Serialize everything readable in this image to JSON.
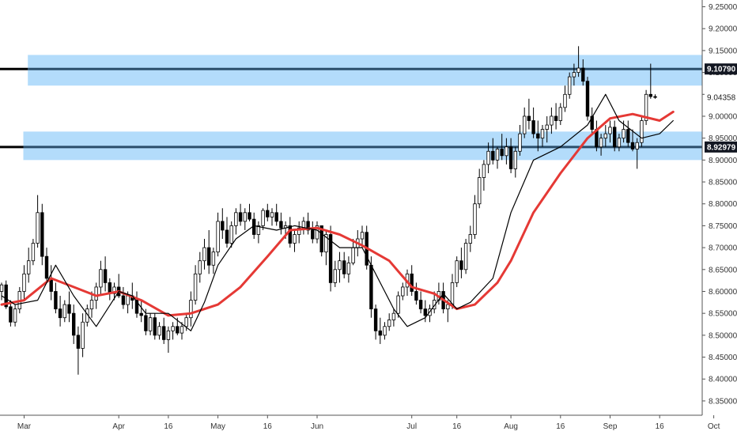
{
  "chart_data": {
    "type": "candlestick",
    "y_range": [
      8.33,
      9.26
    ],
    "x_range": [
      0,
      164
    ],
    "x_ticks": [
      {
        "label": "Mar",
        "x": 5
      },
      {
        "label": "Apr",
        "x": 26
      },
      {
        "label": "16",
        "x": 37
      },
      {
        "label": "May",
        "x": 48
      },
      {
        "label": "16",
        "x": 59
      },
      {
        "label": "Jun",
        "x": 70
      },
      {
        "label": "Jul",
        "x": 91
      },
      {
        "label": "16",
        "x": 101
      },
      {
        "label": "Aug",
        "x": 113
      },
      {
        "label": "16",
        "x": 124
      },
      {
        "label": "Sep",
        "x": 135
      },
      {
        "label": "16",
        "x": 146
      },
      {
        "label": "Oct",
        "x": 158
      }
    ],
    "y_ticks": [
      "8.35000",
      "8.40000",
      "8.45000",
      "8.50000",
      "8.55000",
      "8.60000",
      "8.65000",
      "8.70000",
      "8.75000",
      "8.80000",
      "8.85000",
      "8.90000",
      "8.95000",
      "9.00000",
      "9.05000",
      "9.10000",
      "9.15000",
      "9.20000",
      "9.25000"
    ],
    "price_labels": [
      {
        "text": "9.10790",
        "value": 9.1079,
        "style": "boxed"
      },
      {
        "text": "9.04358",
        "value": 9.04358,
        "style": "plain"
      },
      {
        "text": "8.92979",
        "value": 8.92979,
        "style": "boxed"
      }
    ],
    "zones": [
      {
        "low": 9.07,
        "high": 9.14,
        "x_start": 6,
        "line": 9.1079
      },
      {
        "low": 8.9,
        "high": 8.965,
        "x_start": 5,
        "line": 8.92979
      }
    ],
    "colors": {
      "zone_fill": "#b3dcfb",
      "zone_line": "#2b4e6b",
      "ma_slow": "#e53935",
      "ma_fast": "#000000",
      "candle_down": "#000000",
      "candle_up": "#ffffff",
      "candle_outline": "#000000"
    },
    "series": [
      {
        "type": "ma-slow",
        "points": [
          [
            0,
            8.57
          ],
          [
            5,
            8.58
          ],
          [
            11,
            8.63
          ],
          [
            16,
            8.61
          ],
          [
            21,
            8.59
          ],
          [
            26,
            8.6
          ],
          [
            31,
            8.58
          ],
          [
            37,
            8.545
          ],
          [
            42,
            8.55
          ],
          [
            48,
            8.57
          ],
          [
            53,
            8.61
          ],
          [
            59,
            8.68
          ],
          [
            64,
            8.74
          ],
          [
            70,
            8.745
          ],
          [
            75,
            8.73
          ],
          [
            80,
            8.705
          ],
          [
            86,
            8.67
          ],
          [
            91,
            8.61
          ],
          [
            96,
            8.595
          ],
          [
            101,
            8.56
          ],
          [
            105,
            8.57
          ],
          [
            110,
            8.62
          ],
          [
            113,
            8.67
          ],
          [
            118,
            8.78
          ],
          [
            124,
            8.87
          ],
          [
            130,
            8.95
          ],
          [
            135,
            8.995
          ],
          [
            140,
            9.005
          ],
          [
            146,
            8.99
          ],
          [
            149,
            9.01
          ]
        ]
      },
      {
        "type": "ma-fast",
        "points": [
          [
            0,
            8.59
          ],
          [
            3,
            8.57
          ],
          [
            8,
            8.58
          ],
          [
            12,
            8.66
          ],
          [
            16,
            8.59
          ],
          [
            21,
            8.52
          ],
          [
            26,
            8.6
          ],
          [
            29,
            8.59
          ],
          [
            32,
            8.55
          ],
          [
            37,
            8.55
          ],
          [
            42,
            8.51
          ],
          [
            45,
            8.575
          ],
          [
            48,
            8.66
          ],
          [
            52,
            8.72
          ],
          [
            56,
            8.75
          ],
          [
            61,
            8.74
          ],
          [
            65,
            8.75
          ],
          [
            70,
            8.74
          ],
          [
            75,
            8.7
          ],
          [
            80,
            8.7
          ],
          [
            84,
            8.62
          ],
          [
            87,
            8.56
          ],
          [
            90,
            8.52
          ],
          [
            94,
            8.54
          ],
          [
            98,
            8.595
          ],
          [
            101,
            8.56
          ],
          [
            104,
            8.575
          ],
          [
            109,
            8.63
          ],
          [
            113,
            8.78
          ],
          [
            118,
            8.9
          ],
          [
            124,
            8.93
          ],
          [
            130,
            8.98
          ],
          [
            134,
            9.05
          ],
          [
            137,
            8.99
          ],
          [
            142,
            8.95
          ],
          [
            146,
            8.96
          ],
          [
            149,
            8.99
          ]
        ]
      }
    ],
    "candles": [
      [
        0,
        8.6,
        8.62,
        8.58,
        8.615
      ],
      [
        1,
        8.615,
        8.625,
        8.56,
        8.565
      ],
      [
        2,
        8.565,
        8.58,
        8.52,
        8.53
      ],
      [
        3,
        8.53,
        8.57,
        8.52,
        8.56
      ],
      [
        4,
        8.56,
        8.61,
        8.55,
        8.6
      ],
      [
        5,
        8.6,
        8.66,
        8.58,
        8.64
      ],
      [
        6,
        8.64,
        8.7,
        8.62,
        8.67
      ],
      [
        7,
        8.67,
        8.72,
        8.66,
        8.71
      ],
      [
        8,
        8.71,
        8.82,
        8.7,
        8.78
      ],
      [
        9,
        8.78,
        8.8,
        8.66,
        8.68
      ],
      [
        10,
        8.68,
        8.7,
        8.62,
        8.63
      ],
      [
        11,
        8.63,
        8.66,
        8.58,
        8.6
      ],
      [
        12,
        8.6,
        8.62,
        8.55,
        8.56
      ],
      [
        13,
        8.56,
        8.59,
        8.52,
        8.54
      ],
      [
        14,
        8.54,
        8.58,
        8.53,
        8.57
      ],
      [
        15,
        8.57,
        8.6,
        8.53,
        8.55
      ],
      [
        16,
        8.55,
        8.57,
        8.48,
        8.5
      ],
      [
        17,
        8.5,
        8.52,
        8.41,
        8.47
      ],
      [
        18,
        8.47,
        8.55,
        8.45,
        8.53
      ],
      [
        19,
        8.53,
        8.57,
        8.52,
        8.56
      ],
      [
        20,
        8.56,
        8.6,
        8.54,
        8.58
      ],
      [
        21,
        8.58,
        8.62,
        8.56,
        8.61
      ],
      [
        22,
        8.61,
        8.67,
        8.59,
        8.65
      ],
      [
        23,
        8.65,
        8.68,
        8.6,
        8.62
      ],
      [
        24,
        8.62,
        8.63,
        8.58,
        8.595
      ],
      [
        25,
        8.595,
        8.62,
        8.58,
        8.61
      ],
      [
        26,
        8.61,
        8.64,
        8.585,
        8.59
      ],
      [
        27,
        8.59,
        8.61,
        8.56,
        8.57
      ],
      [
        28,
        8.57,
        8.6,
        8.55,
        8.59
      ],
      [
        29,
        8.59,
        8.62,
        8.56,
        8.58
      ],
      [
        30,
        8.58,
        8.6,
        8.54,
        8.55
      ],
      [
        31,
        8.55,
        8.58,
        8.53,
        8.545
      ],
      [
        32,
        8.545,
        8.56,
        8.5,
        8.51
      ],
      [
        33,
        8.51,
        8.55,
        8.5,
        8.54
      ],
      [
        34,
        8.54,
        8.55,
        8.49,
        8.5
      ],
      [
        35,
        8.5,
        8.53,
        8.49,
        8.52
      ],
      [
        36,
        8.52,
        8.54,
        8.48,
        8.49
      ],
      [
        37,
        8.49,
        8.52,
        8.46,
        8.51
      ],
      [
        38,
        8.51,
        8.53,
        8.49,
        8.52
      ],
      [
        39,
        8.52,
        8.54,
        8.5,
        8.505
      ],
      [
        40,
        8.505,
        8.53,
        8.49,
        8.52
      ],
      [
        41,
        8.52,
        8.55,
        8.51,
        8.54
      ],
      [
        42,
        8.54,
        8.6,
        8.52,
        8.58
      ],
      [
        43,
        8.58,
        8.66,
        8.57,
        8.64
      ],
      [
        44,
        8.64,
        8.69,
        8.62,
        8.67
      ],
      [
        45,
        8.67,
        8.72,
        8.65,
        8.7
      ],
      [
        46,
        8.7,
        8.74,
        8.64,
        8.66
      ],
      [
        47,
        8.66,
        8.7,
        8.64,
        8.69
      ],
      [
        48,
        8.69,
        8.78,
        8.68,
        8.76
      ],
      [
        49,
        8.76,
        8.79,
        8.72,
        8.74
      ],
      [
        50,
        8.74,
        8.77,
        8.7,
        8.71
      ],
      [
        51,
        8.71,
        8.76,
        8.7,
        8.75
      ],
      [
        52,
        8.75,
        8.79,
        8.73,
        8.78
      ],
      [
        53,
        8.78,
        8.8,
        8.75,
        8.76
      ],
      [
        54,
        8.76,
        8.79,
        8.74,
        8.78
      ],
      [
        55,
        8.78,
        8.8,
        8.76,
        8.765
      ],
      [
        56,
        8.765,
        8.78,
        8.72,
        8.73
      ],
      [
        57,
        8.73,
        8.76,
        8.71,
        8.75
      ],
      [
        58,
        8.75,
        8.79,
        8.74,
        8.785
      ],
      [
        59,
        8.785,
        8.8,
        8.76,
        8.77
      ],
      [
        60,
        8.77,
        8.79,
        8.75,
        8.78
      ],
      [
        61,
        8.78,
        8.8,
        8.75,
        8.76
      ],
      [
        62,
        8.76,
        8.78,
        8.73,
        8.745
      ],
      [
        63,
        8.745,
        8.76,
        8.72,
        8.75
      ],
      [
        64,
        8.75,
        8.77,
        8.7,
        8.71
      ],
      [
        65,
        8.71,
        8.74,
        8.69,
        8.73
      ],
      [
        66,
        8.73,
        8.76,
        8.71,
        8.745
      ],
      [
        67,
        8.745,
        8.77,
        8.73,
        8.76
      ],
      [
        68,
        8.76,
        8.78,
        8.73,
        8.74
      ],
      [
        69,
        8.74,
        8.76,
        8.71,
        8.72
      ],
      [
        70,
        8.72,
        8.76,
        8.71,
        8.75
      ],
      [
        71,
        8.75,
        8.75,
        8.68,
        8.69
      ],
      [
        72,
        8.69,
        8.74,
        8.66,
        8.73
      ],
      [
        73,
        8.73,
        8.75,
        8.6,
        8.62
      ],
      [
        74,
        8.62,
        8.67,
        8.61,
        8.65
      ],
      [
        75,
        8.65,
        8.69,
        8.62,
        8.67
      ],
      [
        76,
        8.67,
        8.69,
        8.63,
        8.64
      ],
      [
        77,
        8.64,
        8.68,
        8.62,
        8.665
      ],
      [
        78,
        8.665,
        8.72,
        8.66,
        8.7
      ],
      [
        79,
        8.7,
        8.74,
        8.68,
        8.72
      ],
      [
        80,
        8.72,
        8.75,
        8.7,
        8.735
      ],
      [
        81,
        8.735,
        8.75,
        8.65,
        8.66
      ],
      [
        82,
        8.66,
        8.68,
        8.54,
        8.56
      ],
      [
        83,
        8.56,
        8.57,
        8.49,
        8.51
      ],
      [
        84,
        8.51,
        8.54,
        8.48,
        8.5
      ],
      [
        85,
        8.5,
        8.53,
        8.49,
        8.52
      ],
      [
        86,
        8.52,
        8.55,
        8.51,
        8.535
      ],
      [
        87,
        8.535,
        8.56,
        8.52,
        8.55
      ],
      [
        88,
        8.55,
        8.6,
        8.54,
        8.59
      ],
      [
        89,
        8.59,
        8.62,
        8.58,
        8.61
      ],
      [
        90,
        8.61,
        8.65,
        8.59,
        8.64
      ],
      [
        91,
        8.64,
        8.66,
        8.59,
        8.6
      ],
      [
        92,
        8.6,
        8.62,
        8.57,
        8.58
      ],
      [
        93,
        8.58,
        8.6,
        8.55,
        8.56
      ],
      [
        94,
        8.56,
        8.58,
        8.53,
        8.545
      ],
      [
        95,
        8.545,
        8.57,
        8.53,
        8.56
      ],
      [
        96,
        8.56,
        8.6,
        8.55,
        8.58
      ],
      [
        97,
        8.58,
        8.62,
        8.57,
        8.6
      ],
      [
        98,
        8.6,
        8.62,
        8.55,
        8.56
      ],
      [
        99,
        8.56,
        8.58,
        8.53,
        8.57
      ],
      [
        100,
        8.57,
        8.64,
        8.56,
        8.62
      ],
      [
        101,
        8.62,
        8.68,
        8.61,
        8.67
      ],
      [
        102,
        8.67,
        8.7,
        8.63,
        8.65
      ],
      [
        103,
        8.65,
        8.72,
        8.64,
        8.71
      ],
      [
        104,
        8.71,
        8.75,
        8.69,
        8.73
      ],
      [
        105,
        8.73,
        8.82,
        8.72,
        8.8
      ],
      [
        106,
        8.8,
        8.88,
        8.79,
        8.86
      ],
      [
        107,
        8.86,
        8.9,
        8.83,
        8.89
      ],
      [
        108,
        8.89,
        8.94,
        8.87,
        8.92
      ],
      [
        109,
        8.92,
        8.95,
        8.89,
        8.9
      ],
      [
        110,
        8.9,
        8.93,
        8.88,
        8.925
      ],
      [
        111,
        8.925,
        8.96,
        8.9,
        8.91
      ],
      [
        112,
        8.91,
        8.95,
        8.89,
        8.93
      ],
      [
        113,
        8.93,
        8.95,
        8.87,
        8.88
      ],
      [
        114,
        8.88,
        8.93,
        8.86,
        8.92
      ],
      [
        115,
        8.92,
        8.98,
        8.91,
        8.96
      ],
      [
        116,
        8.96,
        9.02,
        8.95,
        9.0
      ],
      [
        117,
        9.0,
        9.04,
        8.97,
        8.99
      ],
      [
        118,
        8.99,
        9.02,
        8.95,
        8.96
      ],
      [
        119,
        8.96,
        8.99,
        8.92,
        8.95
      ],
      [
        120,
        8.95,
        8.98,
        8.93,
        8.97
      ],
      [
        121,
        8.97,
        9.0,
        8.94,
        8.98
      ],
      [
        122,
        8.98,
        9.02,
        8.96,
        9.0
      ],
      [
        123,
        9.0,
        9.03,
        8.97,
        8.99
      ],
      [
        124,
        8.99,
        9.03,
        8.98,
        9.02
      ],
      [
        125,
        9.02,
        9.07,
        9.01,
        9.05
      ],
      [
        126,
        9.05,
        9.1,
        9.04,
        9.09
      ],
      [
        127,
        9.09,
        9.12,
        9.07,
        9.1
      ],
      [
        128,
        9.1,
        9.16,
        9.09,
        9.11
      ],
      [
        129,
        9.11,
        9.13,
        9.07,
        9.08
      ],
      [
        130,
        9.08,
        9.09,
        8.99,
        9.0
      ],
      [
        131,
        9.0,
        9.02,
        8.96,
        8.97
      ],
      [
        132,
        8.97,
        8.99,
        8.92,
        8.93
      ],
      [
        133,
        8.93,
        8.96,
        8.91,
        8.95
      ],
      [
        134,
        8.95,
        8.98,
        8.93,
        8.96
      ],
      [
        135,
        8.96,
        8.99,
        8.94,
        8.975
      ],
      [
        136,
        8.975,
        8.99,
        8.92,
        8.93
      ],
      [
        137,
        8.93,
        8.96,
        8.92,
        8.95
      ],
      [
        138,
        8.95,
        8.99,
        8.94,
        8.97
      ],
      [
        139,
        8.97,
        8.99,
        8.93,
        8.94
      ],
      [
        140,
        8.94,
        8.97,
        8.92,
        8.925
      ],
      [
        141,
        8.925,
        8.95,
        8.88,
        8.94
      ],
      [
        142,
        8.94,
        9.0,
        8.93,
        8.99
      ],
      [
        143,
        8.99,
        9.06,
        8.98,
        9.05
      ],
      [
        144,
        9.05,
        9.12,
        9.04,
        9.045
      ],
      [
        145,
        9.045,
        9.05,
        9.04,
        9.043
      ]
    ]
  }
}
